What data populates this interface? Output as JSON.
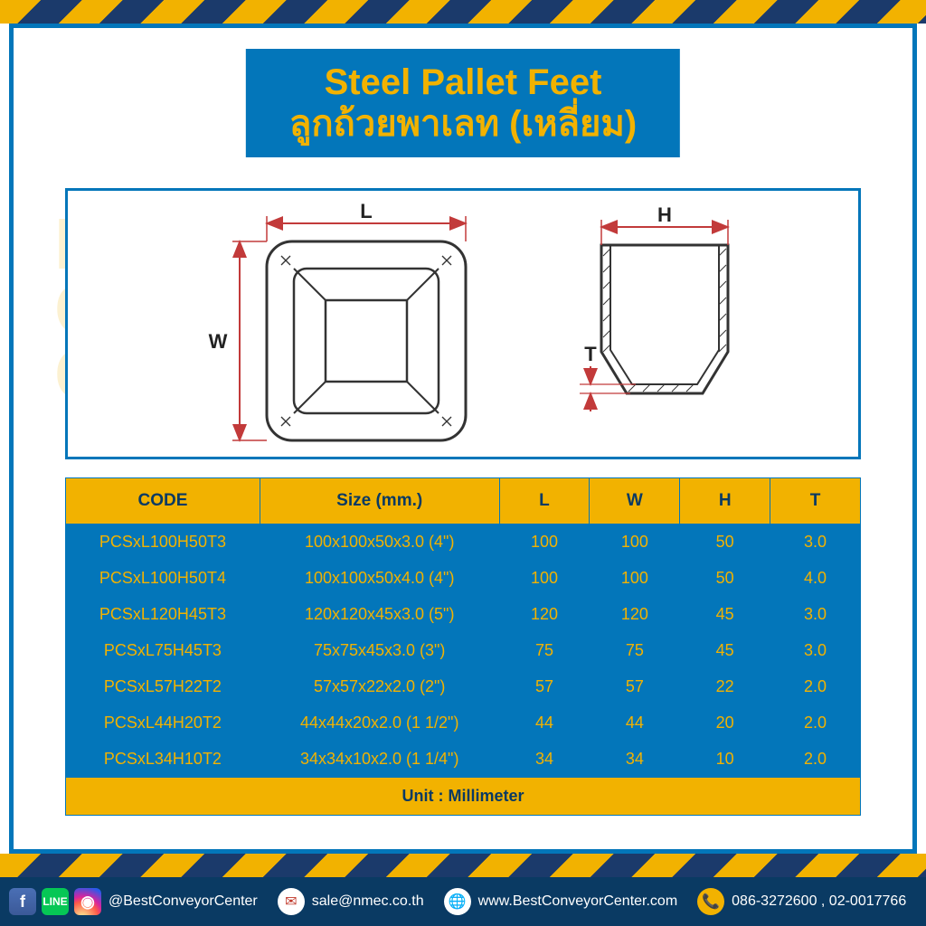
{
  "colors": {
    "border_blue": "#0376ba",
    "accent_yellow": "#f2b200",
    "dark_navy": "#0a3a63",
    "dim_red": "#c23a3a",
    "hazard_dark": "#1b3a6b",
    "white": "#ffffff"
  },
  "title": {
    "en": "Steel Pallet Feet",
    "th": "ลูกถ้วยพาเลท (เหลี่ยม)"
  },
  "watermark": "BEST\nCONVEYOR\nCENTER",
  "diagram": {
    "labels": {
      "L": "L",
      "W": "W",
      "H": "H",
      "T": "T"
    },
    "label_fontsize": 22
  },
  "table": {
    "headers": [
      "CODE",
      "Size (mm.)",
      "L",
      "W",
      "H",
      "T"
    ],
    "footer": "Unit : Millimeter",
    "rows": [
      {
        "code": "PCSxL100H50T3",
        "size": "100x100x50x3.0 (4\")",
        "L": "100",
        "W": "100",
        "H": "50",
        "T": "3.0"
      },
      {
        "code": "PCSxL100H50T4",
        "size": "100x100x50x4.0 (4\")",
        "L": "100",
        "W": "100",
        "H": "50",
        "T": "4.0"
      },
      {
        "code": "PCSxL120H45T3",
        "size": "120x120x45x3.0 (5\")",
        "L": "120",
        "W": "120",
        "H": "45",
        "T": "3.0"
      },
      {
        "code": "PCSxL75H45T3",
        "size": "75x75x45x3.0 (3\")",
        "L": "75",
        "W": "75",
        "H": "45",
        "T": "3.0"
      },
      {
        "code": "PCSxL57H22T2",
        "size": "57x57x22x2.0 (2\")",
        "L": "57",
        "W": "57",
        "H": "22",
        "T": "2.0"
      },
      {
        "code": "PCSxL44H20T2",
        "size": "44x44x20x2.0 (1 1/2\")",
        "L": "44",
        "W": "44",
        "H": "20",
        "T": "2.0"
      },
      {
        "code": "PCSxL34H10T2",
        "size": "34x34x10x2.0 (1 1/4\")",
        "L": "34",
        "W": "34",
        "H": "10",
        "T": "2.0"
      }
    ]
  },
  "contact": {
    "handle": "@BestConveyorCenter",
    "email": "sale@nmec.co.th",
    "web": "www.BestConveyorCenter.com",
    "phone": "086-3272600 , 02-0017766"
  }
}
